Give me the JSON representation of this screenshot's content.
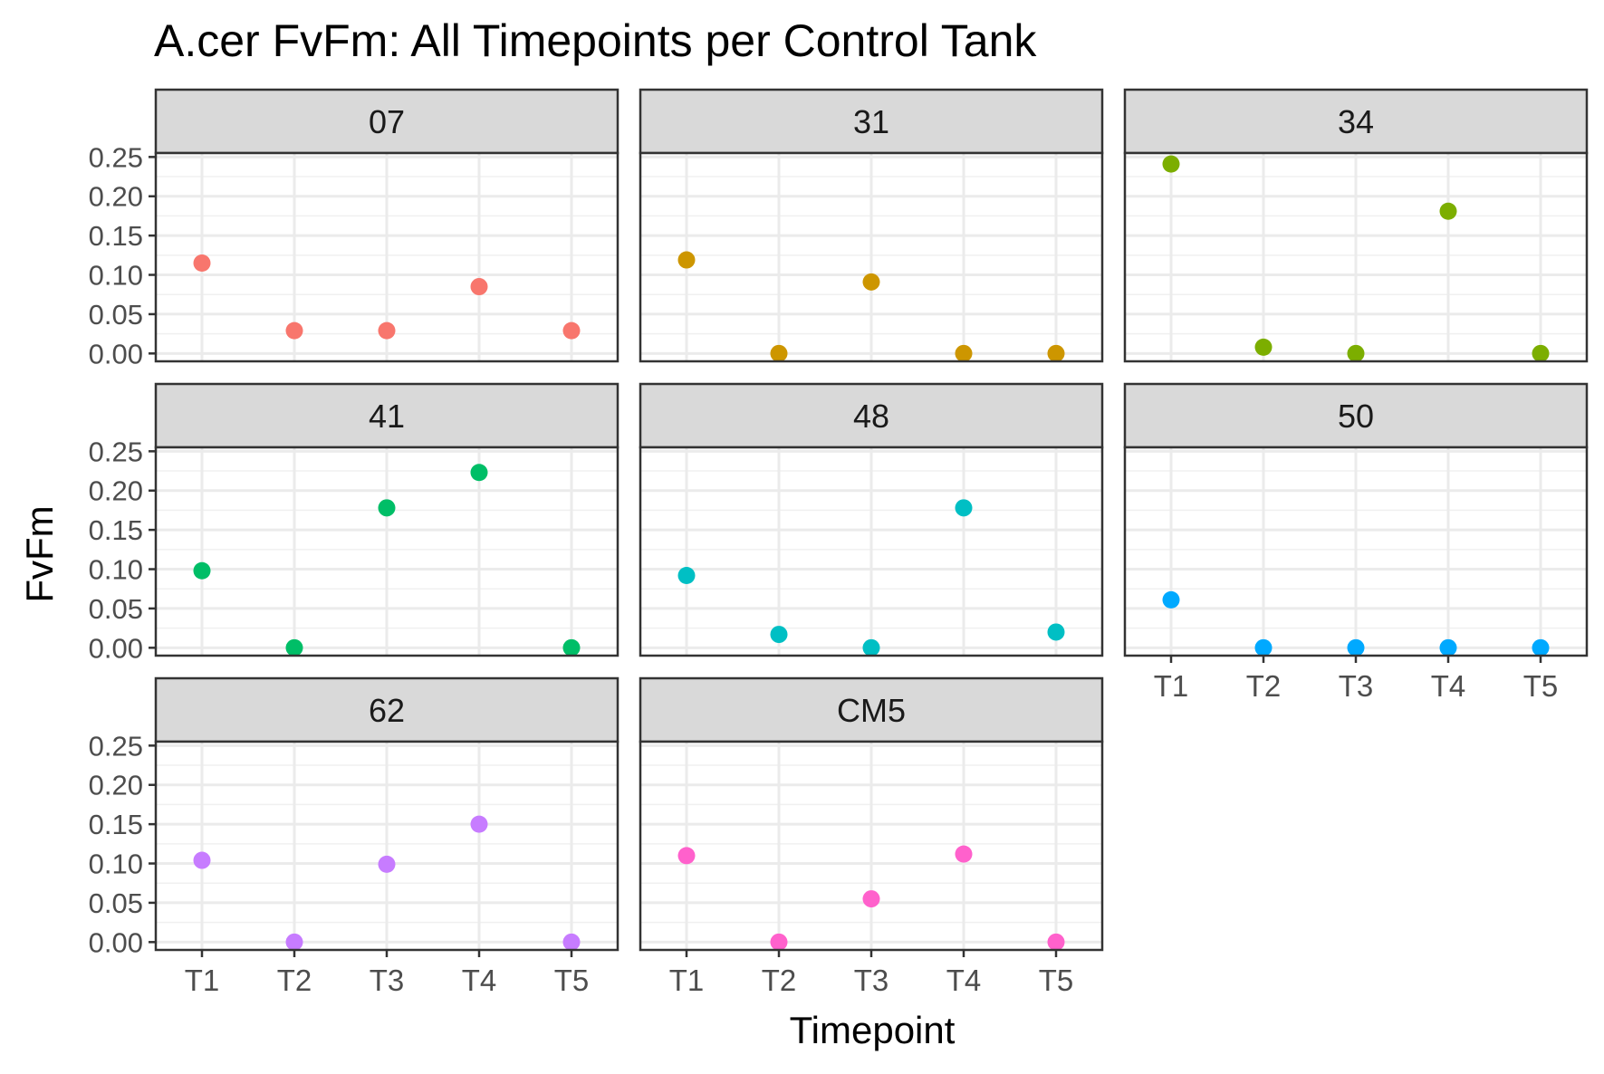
{
  "chart_data": {
    "type": "scatter",
    "title": "A.cer FvFm: All Timepoints per Control Tank",
    "xlabel": "Timepoint",
    "ylabel": "FvFm",
    "x_categories": [
      "T1",
      "T2",
      "T3",
      "T4",
      "T5"
    ],
    "y_ticks": [
      "0.00",
      "0.05",
      "0.10",
      "0.15",
      "0.20",
      "0.25"
    ],
    "ylim": [
      -0.01,
      0.255
    ],
    "grid": true,
    "legend": "none",
    "facets": [
      {
        "label": "07",
        "color": "#F8766D",
        "values": [
          0.115,
          0.029,
          0.029,
          0.085,
          0.029
        ]
      },
      {
        "label": "31",
        "color": "#CD9600",
        "values": [
          0.119,
          0.0,
          0.091,
          0.0,
          0.0
        ]
      },
      {
        "label": "34",
        "color": "#7CAE00",
        "values": [
          0.241,
          0.008,
          0.0,
          0.181,
          0.0
        ]
      },
      {
        "label": "41",
        "color": "#00BE67",
        "values": [
          0.098,
          0.0,
          0.178,
          0.223,
          0.0
        ]
      },
      {
        "label": "48",
        "color": "#00BFC4",
        "values": [
          0.092,
          0.017,
          0.0,
          0.178,
          0.02
        ]
      },
      {
        "label": "50",
        "color": "#00A9FF",
        "values": [
          0.061,
          0.0,
          0.0,
          0.0,
          0.0
        ]
      },
      {
        "label": "62",
        "color": "#C77CFF",
        "values": [
          0.104,
          0.0,
          0.099,
          0.15,
          0.0
        ]
      },
      {
        "label": "CM5",
        "color": "#FF61CC",
        "values": [
          0.11,
          0.0,
          0.055,
          0.112,
          0.0
        ]
      }
    ]
  }
}
